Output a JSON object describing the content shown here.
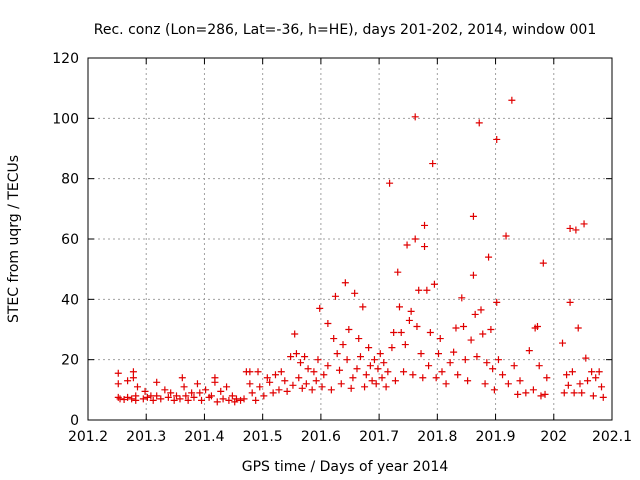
{
  "chart_data": {
    "type": "scatter",
    "title": "Rec. conz (Lon=286, Lat=-36, h=HE), days 201-202, 2014, window 001",
    "xlabel": "GPS time / Days of year 2014",
    "ylabel": "STEC from uqrg / TECUs",
    "xlim": [
      201.2,
      202.1
    ],
    "ylim": [
      0,
      120
    ],
    "xticks": [
      201.2,
      201.3,
      201.4,
      201.5,
      201.6,
      201.7,
      201.8,
      201.9,
      202.0,
      202.1
    ],
    "xtick_labels": [
      "201.2",
      "201.3",
      "201.4",
      "201.5",
      "201.6",
      "201.7",
      "201.8",
      "201.9",
      "202",
      "202.1"
    ],
    "yticks": [
      0,
      20,
      40,
      60,
      80,
      100,
      120
    ],
    "ytick_labels": [
      "0",
      "20",
      "40",
      "60",
      "80",
      "100",
      "120"
    ],
    "grid": true,
    "marker": "+",
    "color": "#e00000",
    "series": [
      {
        "name": "STEC",
        "points": [
          [
            201.252,
            15.5
          ],
          [
            201.252,
            12
          ],
          [
            201.252,
            7.5
          ],
          [
            201.255,
            7
          ],
          [
            201.262,
            6.8
          ],
          [
            201.268,
            13
          ],
          [
            201.268,
            7.5
          ],
          [
            201.275,
            7
          ],
          [
            201.278,
            16
          ],
          [
            201.278,
            14
          ],
          [
            201.282,
            8
          ],
          [
            201.282,
            6.5
          ],
          [
            201.285,
            11
          ],
          [
            201.295,
            7
          ],
          [
            201.298,
            9.5
          ],
          [
            201.302,
            7.5
          ],
          [
            201.308,
            8
          ],
          [
            201.312,
            6.5
          ],
          [
            201.318,
            12.5
          ],
          [
            201.318,
            8
          ],
          [
            201.325,
            7
          ],
          [
            201.332,
            10
          ],
          [
            201.338,
            7.5
          ],
          [
            201.342,
            9
          ],
          [
            201.348,
            6.5
          ],
          [
            201.352,
            8
          ],
          [
            201.358,
            7
          ],
          [
            201.362,
            14
          ],
          [
            201.365,
            11
          ],
          [
            201.368,
            8
          ],
          [
            201.372,
            6.5
          ],
          [
            201.378,
            9
          ],
          [
            201.382,
            7.5
          ],
          [
            201.388,
            12
          ],
          [
            201.392,
            9
          ],
          [
            201.395,
            6.5
          ],
          [
            201.402,
            10
          ],
          [
            201.408,
            7.5
          ],
          [
            201.412,
            8
          ],
          [
            201.418,
            14
          ],
          [
            201.418,
            12.5
          ],
          [
            201.422,
            6
          ],
          [
            201.428,
            9.5
          ],
          [
            201.432,
            7
          ],
          [
            201.438,
            11
          ],
          [
            201.442,
            6.5
          ],
          [
            201.448,
            8
          ],
          [
            201.452,
            6
          ],
          [
            201.455,
            7
          ],
          [
            201.462,
            6.5
          ],
          [
            201.468,
            7
          ],
          [
            201.472,
            16
          ],
          [
            201.478,
            16
          ],
          [
            201.478,
            12
          ],
          [
            201.482,
            9
          ],
          [
            201.488,
            6.5
          ],
          [
            201.492,
            16
          ],
          [
            201.495,
            11
          ],
          [
            201.502,
            8
          ],
          [
            201.508,
            14
          ],
          [
            201.512,
            12.5
          ],
          [
            201.518,
            9
          ],
          [
            201.522,
            15
          ],
          [
            201.528,
            10
          ],
          [
            201.532,
            16
          ],
          [
            201.538,
            13
          ],
          [
            201.542,
            9.5
          ],
          [
            201.548,
            21
          ],
          [
            201.552,
            11.5
          ],
          [
            201.555,
            28.5
          ],
          [
            201.558,
            22
          ],
          [
            201.562,
            14
          ],
          [
            201.565,
            19
          ],
          [
            201.568,
            10.5
          ],
          [
            201.572,
            21
          ],
          [
            201.575,
            12
          ],
          [
            201.578,
            17
          ],
          [
            201.585,
            10
          ],
          [
            201.588,
            16
          ],
          [
            201.592,
            13
          ],
          [
            201.595,
            20
          ],
          [
            201.598,
            37
          ],
          [
            201.602,
            11
          ],
          [
            201.605,
            15
          ],
          [
            201.612,
            32
          ],
          [
            201.612,
            18
          ],
          [
            201.618,
            10
          ],
          [
            201.622,
            27
          ],
          [
            201.625,
            41
          ],
          [
            201.628,
            22
          ],
          [
            201.632,
            16.5
          ],
          [
            201.635,
            12
          ],
          [
            201.638,
            25
          ],
          [
            201.642,
            45.5
          ],
          [
            201.645,
            20
          ],
          [
            201.648,
            30
          ],
          [
            201.652,
            10.5
          ],
          [
            201.655,
            14
          ],
          [
            201.658,
            42
          ],
          [
            201.662,
            17
          ],
          [
            201.665,
            27
          ],
          [
            201.668,
            21
          ],
          [
            201.672,
            37.5
          ],
          [
            201.675,
            11
          ],
          [
            201.678,
            15
          ],
          [
            201.682,
            24
          ],
          [
            201.685,
            18
          ],
          [
            201.688,
            13
          ],
          [
            201.692,
            20
          ],
          [
            201.695,
            12
          ],
          [
            201.698,
            17
          ],
          [
            201.702,
            22
          ],
          [
            201.705,
            14
          ],
          [
            201.708,
            19
          ],
          [
            201.712,
            11
          ],
          [
            201.715,
            16
          ],
          [
            201.718,
            78.5
          ],
          [
            201.722,
            24
          ],
          [
            201.725,
            29
          ],
          [
            201.728,
            13
          ],
          [
            201.732,
            49
          ],
          [
            201.735,
            37.5
          ],
          [
            201.738,
            29
          ],
          [
            201.742,
            16
          ],
          [
            201.745,
            25
          ],
          [
            201.748,
            58
          ],
          [
            201.752,
            33
          ],
          [
            201.755,
            36
          ],
          [
            201.758,
            15
          ],
          [
            201.762,
            60
          ],
          [
            201.762,
            100.5
          ],
          [
            201.765,
            31
          ],
          [
            201.768,
            43
          ],
          [
            201.772,
            22
          ],
          [
            201.775,
            14
          ],
          [
            201.778,
            57.5
          ],
          [
            201.778,
            64.5
          ],
          [
            201.782,
            43
          ],
          [
            201.785,
            18
          ],
          [
            201.788,
            29
          ],
          [
            201.792,
            85
          ],
          [
            201.795,
            45
          ],
          [
            201.798,
            14
          ],
          [
            201.802,
            22
          ],
          [
            201.805,
            27
          ],
          [
            201.808,
            16
          ],
          [
            201.815,
            12
          ],
          [
            201.822,
            19
          ],
          [
            201.828,
            22.5
          ],
          [
            201.832,
            30.5
          ],
          [
            201.835,
            15
          ],
          [
            201.842,
            40.5
          ],
          [
            201.845,
            31
          ],
          [
            201.848,
            20
          ],
          [
            201.852,
            13
          ],
          [
            201.858,
            26.5
          ],
          [
            201.862,
            67.5
          ],
          [
            201.862,
            48
          ],
          [
            201.865,
            35
          ],
          [
            201.868,
            21
          ],
          [
            201.872,
            98.5
          ],
          [
            201.875,
            36.5
          ],
          [
            201.878,
            28.5
          ],
          [
            201.882,
            12
          ],
          [
            201.885,
            19
          ],
          [
            201.888,
            54
          ],
          [
            201.892,
            30
          ],
          [
            201.895,
            17
          ],
          [
            201.898,
            10
          ],
          [
            201.902,
            93
          ],
          [
            201.902,
            39
          ],
          [
            201.905,
            20
          ],
          [
            201.912,
            15
          ],
          [
            201.918,
            61
          ],
          [
            201.922,
            12
          ],
          [
            201.928,
            106
          ],
          [
            201.932,
            18
          ],
          [
            201.938,
            8.5
          ],
          [
            201.942,
            13
          ],
          [
            201.952,
            9
          ],
          [
            201.958,
            23
          ],
          [
            201.965,
            10
          ],
          [
            201.968,
            30.5
          ],
          [
            201.972,
            31
          ],
          [
            201.975,
            18
          ],
          [
            201.978,
            8
          ],
          [
            201.982,
            52
          ],
          [
            201.985,
            8.5
          ],
          [
            201.988,
            14
          ],
          [
            202.015,
            25.5
          ],
          [
            202.018,
            9
          ],
          [
            202.022,
            15
          ],
          [
            202.025,
            11.5
          ],
          [
            202.028,
            63.5
          ],
          [
            202.028,
            39
          ],
          [
            202.032,
            16
          ],
          [
            202.035,
            9
          ],
          [
            202.038,
            63
          ],
          [
            202.042,
            30.5
          ],
          [
            202.045,
            12
          ],
          [
            202.048,
            9
          ],
          [
            202.052,
            65
          ],
          [
            202.055,
            20.5
          ],
          [
            202.058,
            13
          ],
          [
            202.065,
            16
          ],
          [
            202.068,
            8
          ],
          [
            202.072,
            14
          ],
          [
            202.078,
            16
          ],
          [
            202.082,
            11
          ],
          [
            202.085,
            7.5
          ]
        ]
      }
    ]
  }
}
